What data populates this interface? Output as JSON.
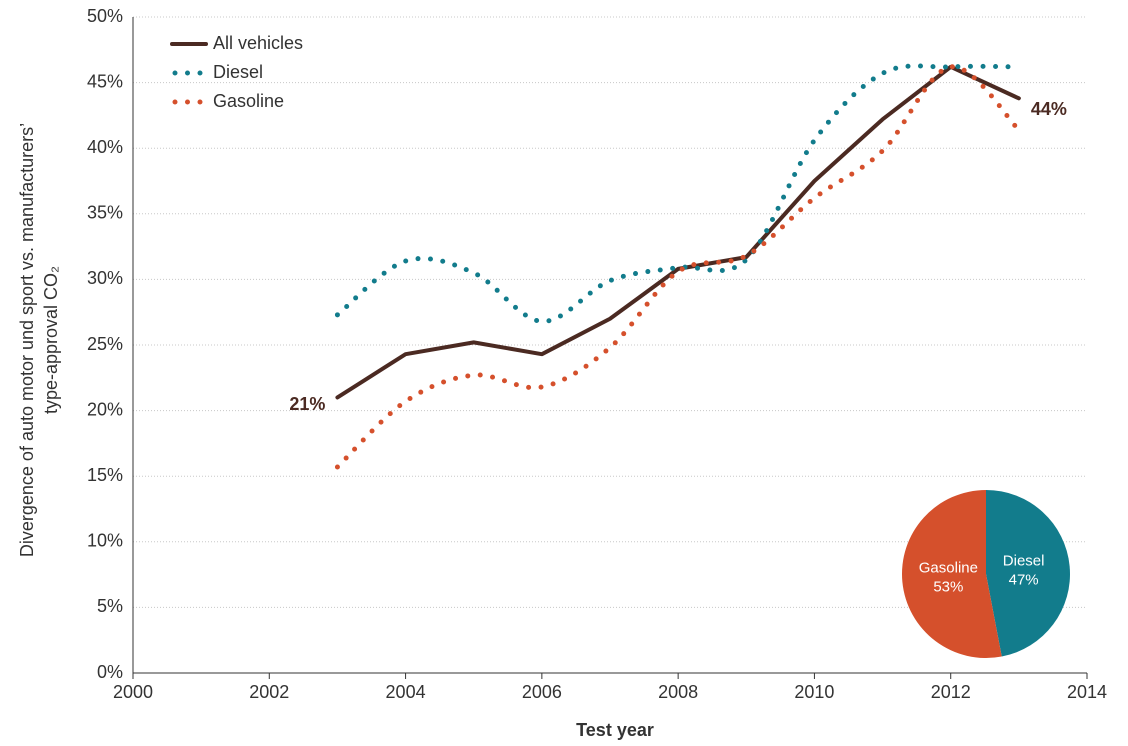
{
  "chart_data": [
    {
      "type": "line",
      "x_label": "Test year",
      "y_label": [
        "Divergence of auto motor und sport vs. manufacturers’",
        "type-approval CO₂"
      ],
      "x": [
        2003,
        2004,
        2005,
        2006,
        2007,
        2008,
        2009,
        2010,
        2011,
        2012,
        2013
      ],
      "series": [
        {
          "name": "All vehicles",
          "color": "#4b2a22",
          "style": "solid",
          "values": [
            21.0,
            24.3,
            25.2,
            24.3,
            27.0,
            30.8,
            31.7,
            37.5,
            42.2,
            46.2,
            43.8
          ],
          "value_labels": [
            "21%",
            null,
            null,
            null,
            null,
            null,
            null,
            null,
            null,
            null,
            "44%"
          ]
        },
        {
          "name": "Diesel",
          "color": "#127c8c",
          "style": "dotted",
          "values": [
            27.3,
            31.4,
            30.5,
            26.8,
            29.9,
            30.9,
            31.5,
            40.6,
            45.7,
            46.2,
            46.2
          ]
        },
        {
          "name": "Gasoline",
          "color": "#d5502c",
          "style": "dotted",
          "values": [
            15.7,
            20.7,
            22.7,
            21.8,
            24.8,
            30.6,
            31.8,
            36.2,
            39.8,
            46.2,
            41.4
          ]
        }
      ],
      "xlim": [
        2000,
        2014
      ],
      "xticks": [
        2000,
        2002,
        2004,
        2006,
        2008,
        2010,
        2012,
        2014
      ],
      "ylim": [
        0,
        50
      ],
      "yticks": [
        {
          "value": 0,
          "label": "0%"
        },
        {
          "value": 5,
          "label": "5%"
        },
        {
          "value": 10,
          "label": "10%"
        },
        {
          "value": 15,
          "label": "15%"
        },
        {
          "value": 20,
          "label": "20%"
        },
        {
          "value": 25,
          "label": "25%"
        },
        {
          "value": 30,
          "label": "30%"
        },
        {
          "value": 35,
          "label": "35%"
        },
        {
          "value": 40,
          "label": "40%"
        },
        {
          "value": 45,
          "label": "45%"
        },
        {
          "value": 50,
          "label": "50%"
        }
      ],
      "grid": true,
      "legend": "top-left"
    },
    {
      "type": "pie",
      "categories": [
        "Diesel",
        "Gasoline"
      ],
      "values": [
        47,
        53
      ],
      "value_labels": [
        "47%",
        "53%"
      ],
      "colors": [
        "#127c8c",
        "#d5502c"
      ]
    }
  ]
}
